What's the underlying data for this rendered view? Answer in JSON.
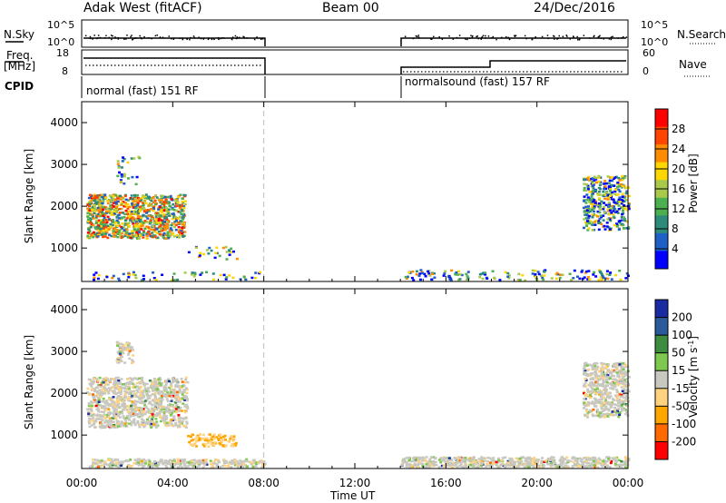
{
  "header": {
    "title": "Adak West (fitACF)",
    "beam": "Beam 00",
    "date": "24/Dec/2016"
  },
  "strip_labels": {
    "nsky": "N.Sky",
    "nsky_top": "10^5",
    "nsky_bottom": "10^0",
    "nsearch": "N.Search",
    "nsearch_top": "10^5",
    "nsearch_bottom": "10^0",
    "freq": "Freq.",
    "freq_unit": "[MHz]",
    "freq_top": "18",
    "freq_bottom": "8",
    "nave": "Nave",
    "nave_top": "60",
    "nave_bottom": "0",
    "cpid": "CPID"
  },
  "cpid_segments": [
    {
      "label": "normal (fast) 151 RF",
      "start_hour": 0,
      "end_hour": 8
    },
    {
      "label": "normalsound (fast) 157 RF",
      "start_hour": 14,
      "end_hour": 24
    }
  ],
  "colors": {
    "power_scale": [
      "#0000ff",
      "#1f5fc8",
      "#2e8b7a",
      "#4caf50",
      "#a8c94a",
      "#ffd700",
      "#ff8c00",
      "#ff4500",
      "#ff0000"
    ],
    "velocity_scale": [
      "#ff0000",
      "#ff6a00",
      "#ffa500",
      "#ffd27f",
      "#c8c8c0",
      "#7ec850",
      "#3d8c40",
      "#2a5a9a",
      "#1a2aa0"
    ],
    "ground_scatter": "#c8c8c0"
  },
  "chart_data": [
    {
      "type": "heatmap",
      "name": "power",
      "xlabel": "",
      "ylabel": "Slant Range [km]",
      "xlim": [
        0,
        24
      ],
      "ylim": [
        200,
        4500
      ],
      "yticks": [
        "1000",
        "2000",
        "3000",
        "4000"
      ],
      "colorbar": {
        "label": "Power [dB]",
        "range": [
          0,
          32
        ],
        "ticks": [
          "4",
          "8",
          "12",
          "16",
          "20",
          "24",
          "28"
        ]
      },
      "dividers": [
        8
      ],
      "regions": [
        {
          "x": [
            0.2,
            4.5
          ],
          "y": [
            1250,
            2300
          ],
          "level": 0.55
        },
        {
          "x": [
            1.5,
            2.5
          ],
          "y": [
            2550,
            3250
          ],
          "level": 0.1
        },
        {
          "x": [
            4.6,
            6.8
          ],
          "y": [
            750,
            1050
          ],
          "level": 0.1
        },
        {
          "x": [
            22.0,
            24.0
          ],
          "y": [
            1450,
            2750
          ],
          "level": 0.35
        },
        {
          "x": [
            14.0,
            24.0
          ],
          "y": [
            250,
            500
          ],
          "level": 0.15
        },
        {
          "x": [
            0.3,
            8.0
          ],
          "y": [
            250,
            450
          ],
          "level": 0.1
        }
      ]
    },
    {
      "type": "heatmap",
      "name": "velocity",
      "xlabel": "Time UT",
      "ylabel": "Slant Range [km]",
      "xlim": [
        0,
        24
      ],
      "ylim": [
        200,
        4500
      ],
      "xticks": [
        "00:00",
        "04:00",
        "08:00",
        "12:00",
        "16:00",
        "20:00",
        "00:00"
      ],
      "yticks": [
        "1000",
        "2000",
        "3000",
        "4000"
      ],
      "colorbar": {
        "label": "Velocity [m s",
        "label_sup": "-1",
        "label_end": "]",
        "ticks": [
          "200",
          "100",
          "50",
          "15",
          "-15",
          "-50",
          "-100",
          "-200"
        ]
      },
      "dividers": [
        8
      ],
      "regions": [
        {
          "x": [
            0.2,
            4.6
          ],
          "y": [
            1200,
            2400
          ],
          "level": 0.5
        },
        {
          "x": [
            4.6,
            6.8
          ],
          "y": [
            750,
            1050
          ],
          "level": 0.35
        },
        {
          "x": [
            1.5,
            2.2
          ],
          "y": [
            2750,
            3250
          ],
          "level": 0.5
        },
        {
          "x": [
            22.0,
            24.0
          ],
          "y": [
            1450,
            2750
          ],
          "level": 0.5
        },
        {
          "x": [
            14.0,
            24.0
          ],
          "y": [
            250,
            500
          ],
          "level": 0.6
        },
        {
          "x": [
            0.3,
            8.0
          ],
          "y": [
            250,
            450
          ],
          "level": 0.55
        }
      ]
    }
  ]
}
